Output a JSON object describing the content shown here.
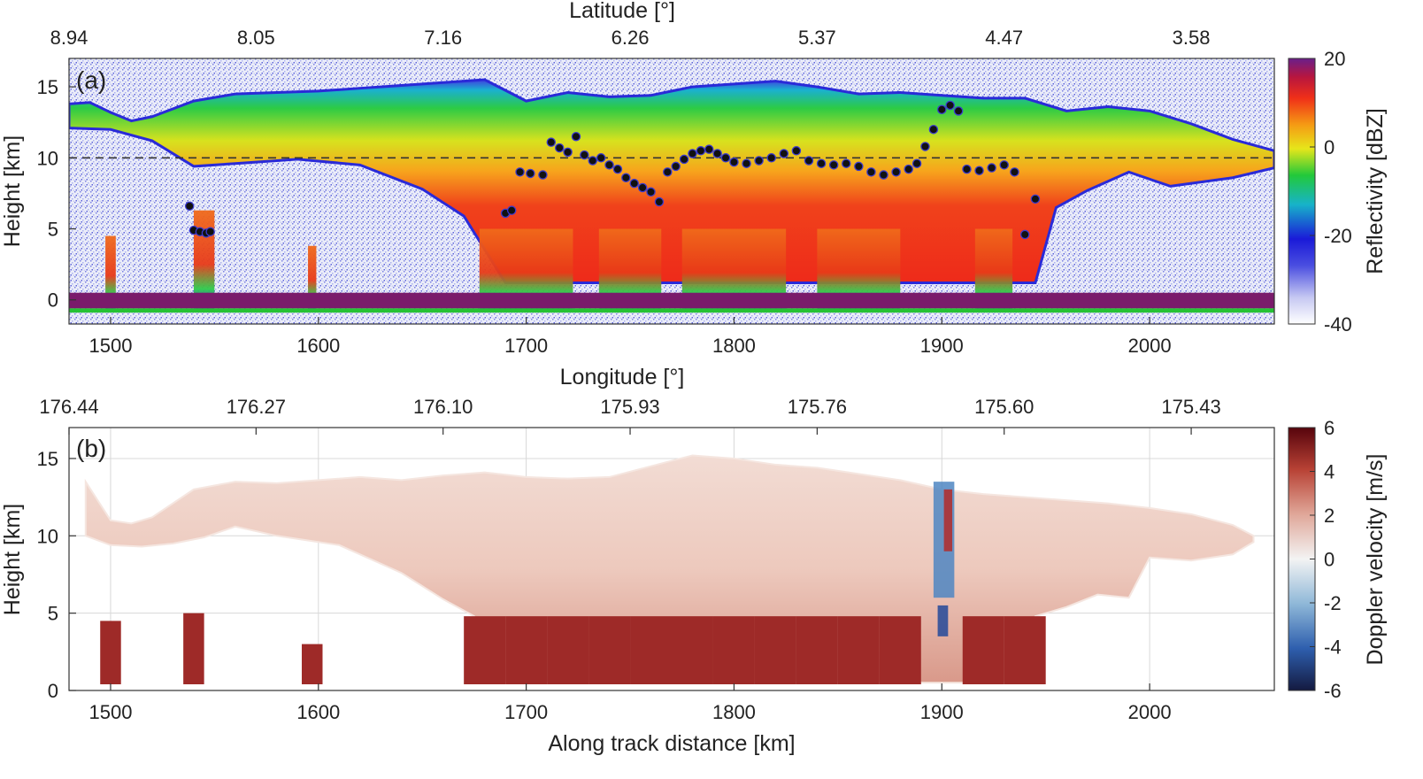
{
  "chart_data": [
    {
      "type": "heatmap",
      "panel_label": "(a)",
      "xlabel": "Longitude [°]",
      "ylabel": "Height [km]",
      "top_axis_label": "Latitude [°]",
      "xlim": [
        1480,
        2060
      ],
      "ylim": [
        -1.7,
        17
      ],
      "x_ticks": [
        1500,
        1600,
        1700,
        1800,
        1900,
        2000
      ],
      "y_ticks": [
        0,
        5,
        10,
        15
      ],
      "top_ticks": [
        {
          "x": 1480,
          "label": "8.94"
        },
        {
          "x": 1570,
          "label": "8.05"
        },
        {
          "x": 1660,
          "label": "7.16"
        },
        {
          "x": 1750,
          "label": "6.26"
        },
        {
          "x": 1840,
          "label": "5.37"
        },
        {
          "x": 1930,
          "label": "4.47"
        },
        {
          "x": 2020,
          "label": "3.58"
        }
      ],
      "dashed_line_height": 10,
      "colorbar": {
        "label": "Reflectivity [dBZ]",
        "min": -40,
        "max": 20,
        "ticks": [
          "20",
          "0",
          "-20",
          "-40"
        ]
      },
      "cloud_top_km": [
        [
          1480,
          13.8
        ],
        [
          1490,
          13.9
        ],
        [
          1500,
          13.2
        ],
        [
          1510,
          12.6
        ],
        [
          1520,
          12.9
        ],
        [
          1540,
          14.0
        ],
        [
          1560,
          14.5
        ],
        [
          1580,
          14.6
        ],
        [
          1600,
          14.7
        ],
        [
          1620,
          14.9
        ],
        [
          1640,
          15.1
        ],
        [
          1660,
          15.3
        ],
        [
          1680,
          15.5
        ],
        [
          1700,
          14.0
        ],
        [
          1720,
          14.6
        ],
        [
          1740,
          14.3
        ],
        [
          1760,
          14.4
        ],
        [
          1780,
          15.0
        ],
        [
          1800,
          15.2
        ],
        [
          1820,
          15.4
        ],
        [
          1840,
          15.0
        ],
        [
          1860,
          14.5
        ],
        [
          1880,
          14.6
        ],
        [
          1900,
          14.4
        ],
        [
          1920,
          14.2
        ],
        [
          1940,
          14.2
        ],
        [
          1960,
          13.3
        ],
        [
          1980,
          13.6
        ],
        [
          2000,
          13.3
        ],
        [
          2020,
          12.4
        ],
        [
          2040,
          11.3
        ],
        [
          2060,
          10.5
        ]
      ],
      "points": [
        [
          1538,
          6.6
        ],
        [
          1540,
          4.9
        ],
        [
          1543,
          4.8
        ],
        [
          1546,
          4.7
        ],
        [
          1548,
          4.8
        ],
        [
          1690,
          6.1
        ],
        [
          1693,
          6.3
        ],
        [
          1697,
          9.0
        ],
        [
          1702,
          8.9
        ],
        [
          1708,
          8.8
        ],
        [
          1712,
          11.1
        ],
        [
          1716,
          10.7
        ],
        [
          1720,
          10.4
        ],
        [
          1724,
          11.5
        ],
        [
          1728,
          10.2
        ],
        [
          1732,
          9.8
        ],
        [
          1736,
          10.0
        ],
        [
          1740,
          9.5
        ],
        [
          1744,
          9.2
        ],
        [
          1748,
          8.6
        ],
        [
          1752,
          8.2
        ],
        [
          1756,
          7.9
        ],
        [
          1760,
          7.6
        ],
        [
          1764,
          6.9
        ],
        [
          1768,
          9.0
        ],
        [
          1772,
          9.4
        ],
        [
          1776,
          9.9
        ],
        [
          1780,
          10.3
        ],
        [
          1784,
          10.5
        ],
        [
          1788,
          10.6
        ],
        [
          1792,
          10.3
        ],
        [
          1796,
          10.0
        ],
        [
          1800,
          9.7
        ],
        [
          1806,
          9.6
        ],
        [
          1812,
          9.8
        ],
        [
          1818,
          10.0
        ],
        [
          1824,
          10.3
        ],
        [
          1830,
          10.5
        ],
        [
          1836,
          9.8
        ],
        [
          1842,
          9.6
        ],
        [
          1848,
          9.5
        ],
        [
          1854,
          9.6
        ],
        [
          1860,
          9.4
        ],
        [
          1866,
          9.0
        ],
        [
          1872,
          8.8
        ],
        [
          1878,
          9.0
        ],
        [
          1884,
          9.2
        ],
        [
          1888,
          9.6
        ],
        [
          1892,
          10.8
        ],
        [
          1896,
          12.0
        ],
        [
          1900,
          13.4
        ],
        [
          1904,
          13.7
        ],
        [
          1908,
          13.3
        ],
        [
          1912,
          9.2
        ],
        [
          1918,
          9.1
        ],
        [
          1924,
          9.3
        ],
        [
          1930,
          9.5
        ],
        [
          1935,
          9.0
        ],
        [
          1940,
          4.6
        ],
        [
          1945,
          7.1
        ]
      ],
      "precip_columns": [
        [
          1500,
          5,
          4.5
        ],
        [
          1545,
          10,
          6.3
        ],
        [
          1597,
          4,
          3.8
        ],
        [
          1700,
          45,
          5.0
        ],
        [
          1750,
          30,
          5.0
        ],
        [
          1800,
          50,
          5.0
        ],
        [
          1860,
          40,
          5.0
        ],
        [
          1925,
          18,
          5.0
        ]
      ]
    },
    {
      "type": "heatmap",
      "panel_label": "(b)",
      "xlabel": "Along track distance [km]",
      "ylabel": "Height [km]",
      "top_axis_label": "Longitude [°]",
      "xlim": [
        1480,
        2060
      ],
      "ylim": [
        0,
        17
      ],
      "x_ticks": [
        1500,
        1600,
        1700,
        1800,
        1900,
        2000
      ],
      "y_ticks": [
        0,
        5,
        10,
        15
      ],
      "top_ticks": [
        {
          "x": 1480,
          "label": "176.44"
        },
        {
          "x": 1570,
          "label": "176.27"
        },
        {
          "x": 1660,
          "label": "176.10"
        },
        {
          "x": 1750,
          "label": "175.93"
        },
        {
          "x": 1840,
          "label": "175.76"
        },
        {
          "x": 1930,
          "label": "175.60"
        },
        {
          "x": 2020,
          "label": "175.43"
        }
      ],
      "colorbar": {
        "label": "Doppler velocity [m/s]",
        "min": -6,
        "max": 6,
        "ticks": [
          "6",
          "4",
          "2",
          "0",
          "-2",
          "-4",
          "-6"
        ]
      },
      "cloud_top_km": [
        [
          1488,
          13.5
        ],
        [
          1500,
          11.0
        ],
        [
          1510,
          10.8
        ],
        [
          1520,
          11.2
        ],
        [
          1540,
          13.0
        ],
        [
          1560,
          13.5
        ],
        [
          1580,
          13.4
        ],
        [
          1600,
          13.6
        ],
        [
          1620,
          13.8
        ],
        [
          1640,
          13.6
        ],
        [
          1660,
          13.9
        ],
        [
          1680,
          14.1
        ],
        [
          1700,
          13.8
        ],
        [
          1720,
          13.7
        ],
        [
          1740,
          13.8
        ],
        [
          1760,
          14.5
        ],
        [
          1780,
          15.2
        ],
        [
          1800,
          15.0
        ],
        [
          1820,
          14.6
        ],
        [
          1840,
          14.4
        ],
        [
          1860,
          14.0
        ],
        [
          1880,
          13.6
        ],
        [
          1900,
          13.0
        ],
        [
          1920,
          12.7
        ],
        [
          1940,
          12.5
        ],
        [
          1960,
          12.3
        ],
        [
          1980,
          12.1
        ],
        [
          2000,
          11.8
        ],
        [
          2020,
          11.4
        ],
        [
          2040,
          10.7
        ],
        [
          2050,
          10.0
        ]
      ],
      "fall_streak_columns": [
        [
          1500,
          4.5
        ],
        [
          1540,
          5.0
        ],
        [
          1597,
          3.0
        ],
        [
          1680,
          4.8
        ],
        [
          1700,
          4.8
        ],
        [
          1720,
          4.8
        ],
        [
          1740,
          4.8
        ],
        [
          1760,
          4.8
        ],
        [
          1780,
          4.8
        ],
        [
          1800,
          4.8
        ],
        [
          1820,
          4.8
        ],
        [
          1840,
          4.8
        ],
        [
          1860,
          4.8
        ],
        [
          1880,
          4.8
        ],
        [
          1920,
          4.8
        ],
        [
          1940,
          4.8
        ]
      ]
    }
  ]
}
